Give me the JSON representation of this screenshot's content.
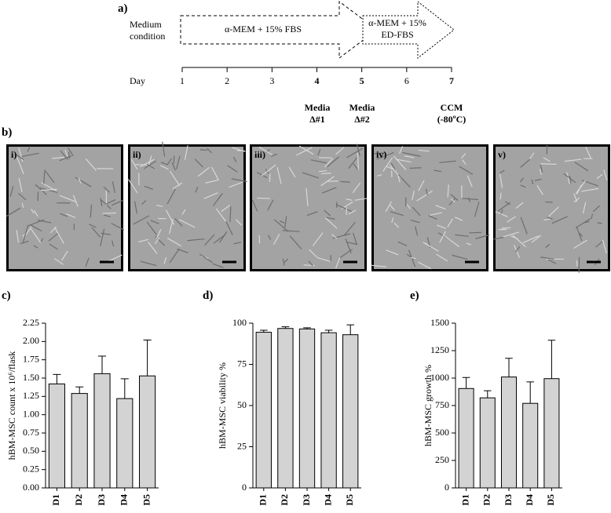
{
  "figure_a": {
    "label": "a)",
    "medium_label": "Medium condition",
    "media": [
      "α-MEM + 15% FBS",
      "α-MEM + 15% ED-FBS"
    ],
    "day_label": "Day",
    "days": [
      1,
      2,
      3,
      4,
      5,
      6,
      7
    ],
    "events": [
      "Media Δ#1",
      "Media Δ#2",
      "CCM (-80ºC)"
    ]
  },
  "figure_b": {
    "label": "b)",
    "images": [
      "i)",
      "ii)",
      "iii)",
      "iv)",
      "v)"
    ]
  },
  "chart_data": [
    {
      "type": "bar",
      "panel_label": "c)",
      "y_label": "hBM-MSC count x 10⁶/flask",
      "categories": [
        "D1",
        "D2",
        "D3",
        "D4",
        "D5"
      ],
      "values": [
        1.42,
        1.29,
        1.56,
        1.22,
        1.53
      ],
      "errors": [
        0.13,
        0.09,
        0.24,
        0.27,
        0.49
      ],
      "color": "#d3d3d3",
      "ylim": [
        0,
        2.25
      ],
      "yticks": [
        {
          "value": 0,
          "label": "0.00"
        },
        0.25,
        {
          "value": 0.5,
          "label": "0.50"
        },
        0.75,
        {
          "value": 1,
          "label": "1.00"
        },
        1.25,
        {
          "value": 1.5,
          "label": "1.50"
        },
        1.75,
        {
          "value": 2,
          "label": "2.00"
        },
        2.25
      ]
    },
    {
      "type": "bar",
      "panel_label": "d)",
      "y_label": "hBM-MSC viability %",
      "categories": [
        "D1",
        "D2",
        "D3",
        "D4",
        "D5"
      ],
      "values": [
        94.5,
        96.8,
        96.5,
        94.2,
        93
      ],
      "errors": [
        1.2,
        1.0,
        0.7,
        1.5,
        6
      ],
      "color": "#d3d3d3",
      "ylim": [
        0,
        100
      ],
      "yticks": [
        0,
        25,
        50,
        75,
        100
      ]
    },
    {
      "type": "bar",
      "panel_label": "e)",
      "y_label": "hBM-MSC growth %",
      "categories": [
        "D1",
        "D2",
        "D3",
        "D4",
        "D5"
      ],
      "values": [
        905,
        820,
        1010,
        770,
        995
      ],
      "errors": [
        100,
        65,
        170,
        195,
        350
      ],
      "color": "#d3d3d3",
      "ylim": [
        0,
        1500
      ],
      "yticks": [
        0,
        250,
        500,
        750,
        1000,
        1250,
        1500
      ]
    }
  ]
}
